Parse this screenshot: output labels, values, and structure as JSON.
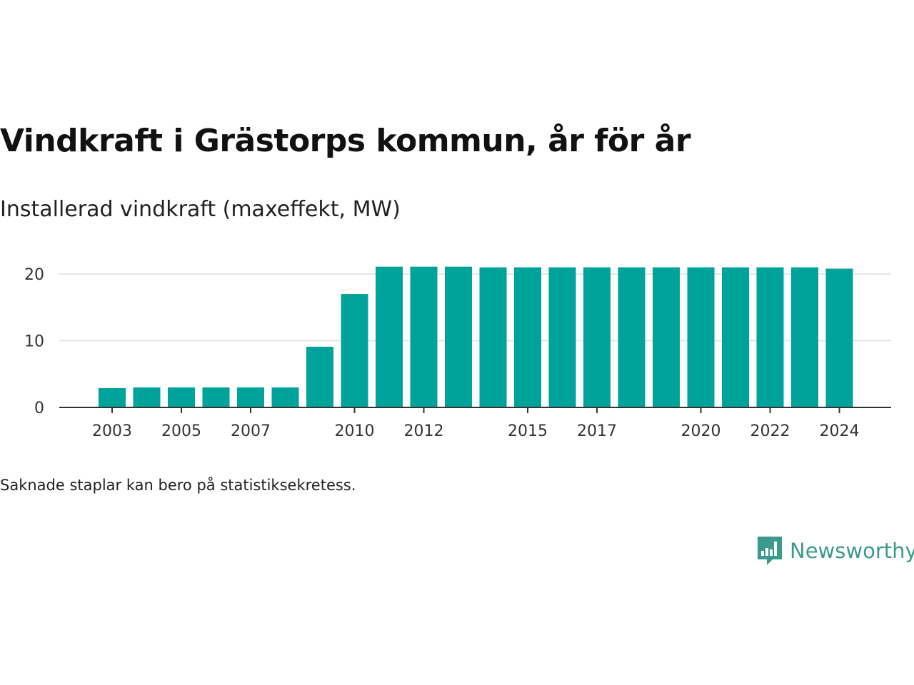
{
  "header": {
    "title": "Vindkraft i Grästorps kommun, år för år",
    "subtitle": "Installerad vindkraft (maxeffekt, MW)"
  },
  "footer": {
    "note": "Saknade staplar kan bero på statistiksekretess.",
    "brand": "Newsworthy"
  },
  "colors": {
    "bar": "#00a39a",
    "grid": "#dddddd",
    "axis": "#333333",
    "brand": "#3a9a8e"
  },
  "chart_data": {
    "type": "bar",
    "categories": [
      "2003",
      "2004",
      "2005",
      "2006",
      "2007",
      "2008",
      "2009",
      "2010",
      "2011",
      "2012",
      "2013",
      "2014",
      "2015",
      "2016",
      "2017",
      "2018",
      "2019",
      "2020",
      "2021",
      "2022",
      "2023",
      "2024"
    ],
    "values": [
      2.9,
      3.0,
      3.0,
      3.0,
      3.0,
      3.0,
      9.1,
      17.0,
      21.1,
      21.1,
      21.1,
      21.0,
      21.0,
      21.0,
      21.0,
      21.0,
      21.0,
      21.0,
      21.0,
      21.0,
      21.0,
      20.8
    ],
    "x_tick_labels": [
      "2003",
      "2005",
      "2007",
      "2010",
      "2012",
      "2015",
      "2017",
      "2020",
      "2022",
      "2024"
    ],
    "y_ticks": [
      0,
      10,
      20
    ],
    "ylim": [
      0,
      22
    ],
    "grid": true,
    "legend": "none"
  }
}
